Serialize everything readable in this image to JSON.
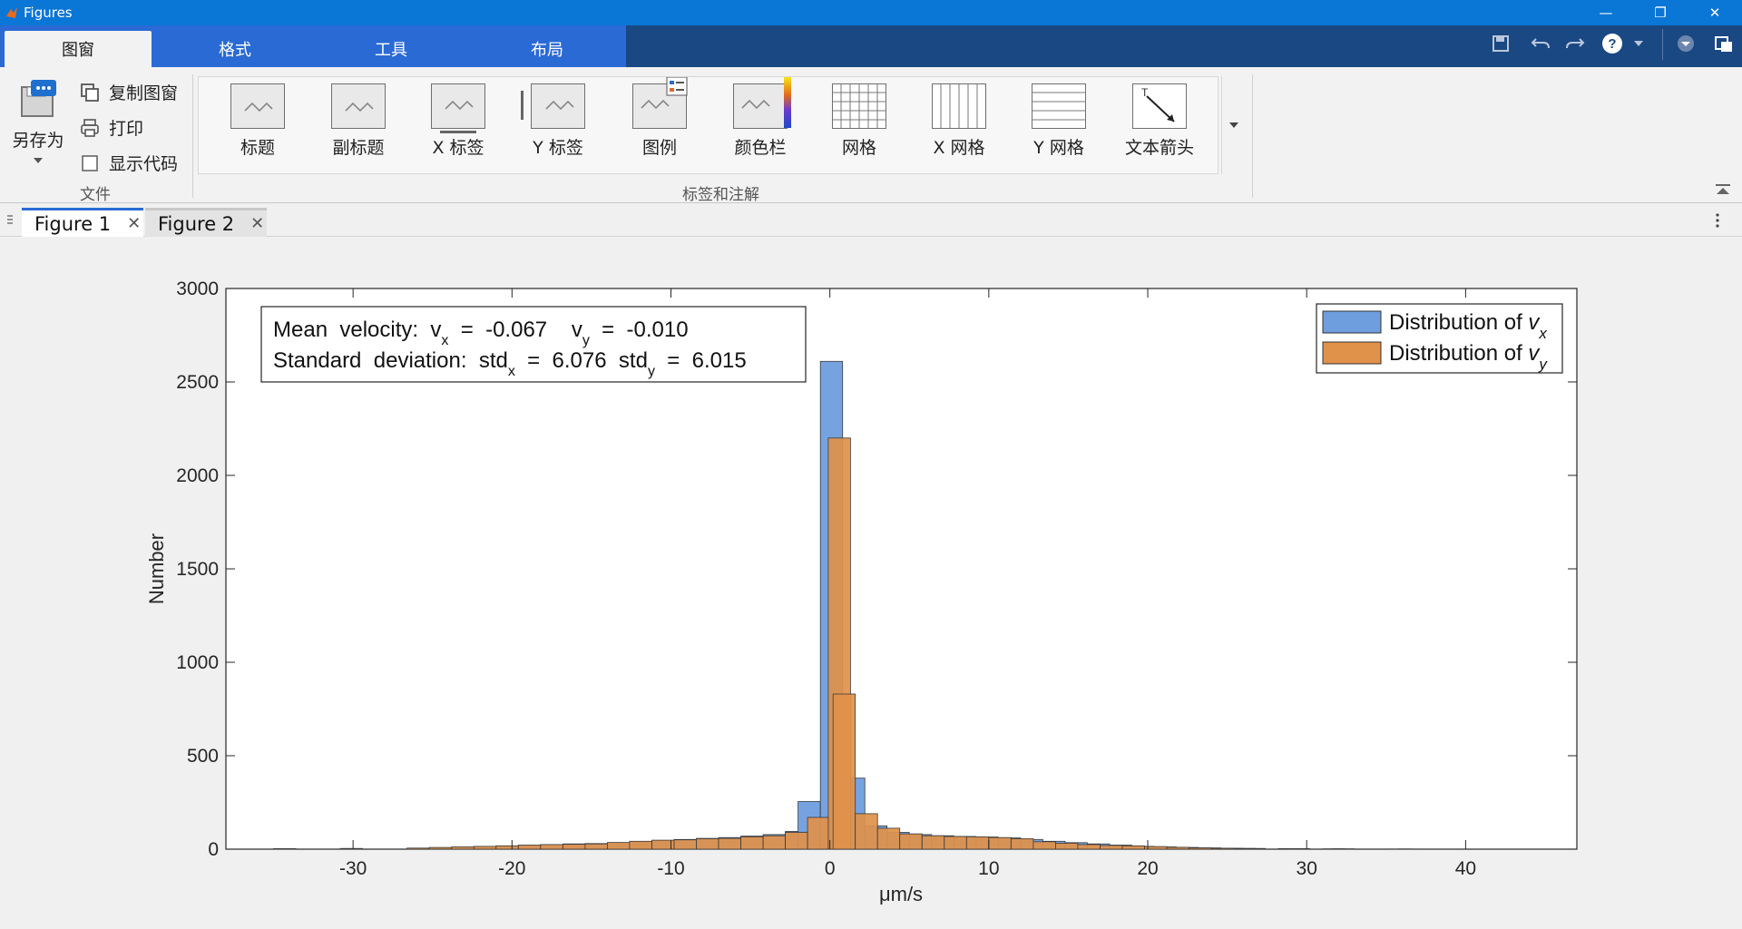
{
  "window": {
    "title": "Figures"
  },
  "ribbon_tabs": [
    "图窗",
    "格式",
    "工具",
    "布局"
  ],
  "file_group": {
    "save_as": "另存为",
    "copy_figure": "复制图窗",
    "print": "打印",
    "show_code": "显示代码",
    "label": "文件"
  },
  "annot_group": {
    "label": "标签和注解",
    "buttons": [
      "标题",
      "副标题",
      "X 标签",
      "Y 标签",
      "图例",
      "颜色栏",
      "网格",
      "X 网格",
      "Y 网格",
      "文本箭头"
    ]
  },
  "figure_tabs": [
    "Figure 1",
    "Figure 2"
  ],
  "chart_data": {
    "type": "bar",
    "xlabel": "μm/s",
    "ylabel": "Number",
    "xlim": [
      -38,
      47
    ],
    "ylim": [
      0,
      3000
    ],
    "xticks": [
      -30,
      -20,
      -10,
      0,
      10,
      20,
      30,
      40
    ],
    "yticks": [
      0,
      500,
      1000,
      1500,
      2000,
      2500,
      3000
    ],
    "bin_width": 1.4,
    "annotation": {
      "line1_prefix": "Mean  velocity:  v",
      "line1_sub1": "x",
      "line1_mid": "  =  -0.067    v",
      "line1_sub2": "y",
      "line1_suffix": "  =  -0.010",
      "line2_prefix": "Standard  deviation:  std",
      "line2_sub1": "x",
      "line2_mid": "  =  6.076  std",
      "line2_sub2": "y",
      "line2_suffix": "  =  6.015"
    },
    "legend": {
      "position": "top-right"
    },
    "series": [
      {
        "name": "Distribution of v_x",
        "legend_text": "Distribution of ",
        "legend_var": "v",
        "legend_sub": "x",
        "color": "#6f9ede",
        "bins": [
          [
            -35.0,
            2
          ],
          [
            -30.8,
            4
          ],
          [
            -26.6,
            5
          ],
          [
            -25.2,
            8
          ],
          [
            -23.8,
            10
          ],
          [
            -22.4,
            14
          ],
          [
            -21.0,
            16
          ],
          [
            -19.6,
            20
          ],
          [
            -18.2,
            24
          ],
          [
            -16.8,
            28
          ],
          [
            -15.4,
            30
          ],
          [
            -14.0,
            34
          ],
          [
            -12.6,
            40
          ],
          [
            -11.2,
            46
          ],
          [
            -9.8,
            52
          ],
          [
            -8.4,
            58
          ],
          [
            -7.0,
            62
          ],
          [
            -5.6,
            70
          ],
          [
            -4.2,
            78
          ],
          [
            -2.8,
            95
          ],
          [
            -2.0,
            255
          ],
          [
            -0.6,
            2610
          ],
          [
            0.8,
            380
          ],
          [
            2.2,
            125
          ],
          [
            3.6,
            90
          ],
          [
            5.0,
            78
          ],
          [
            6.4,
            72
          ],
          [
            7.8,
            68
          ],
          [
            9.2,
            65
          ],
          [
            10.6,
            60
          ],
          [
            12.0,
            52
          ],
          [
            13.4,
            42
          ],
          [
            14.8,
            35
          ],
          [
            16.2,
            28
          ],
          [
            17.6,
            22
          ],
          [
            19.0,
            15
          ],
          [
            20.4,
            12
          ],
          [
            21.8,
            9
          ],
          [
            23.2,
            7
          ],
          [
            24.6,
            5
          ],
          [
            26.0,
            4
          ],
          [
            28.8,
            3
          ],
          [
            31.6,
            2
          ],
          [
            35.8,
            1
          ]
        ]
      },
      {
        "name": "Distribution of v_y",
        "legend_text": "Distribution of ",
        "legend_var": "v",
        "legend_sub": "y",
        "color": "#e0914a",
        "bins": [
          [
            -35.0,
            3
          ],
          [
            -30.8,
            3
          ],
          [
            -26.6,
            6
          ],
          [
            -25.2,
            9
          ],
          [
            -23.8,
            12
          ],
          [
            -22.4,
            15
          ],
          [
            -21.0,
            18
          ],
          [
            -19.6,
            22
          ],
          [
            -18.2,
            25
          ],
          [
            -16.8,
            26
          ],
          [
            -15.4,
            28
          ],
          [
            -14.0,
            36
          ],
          [
            -12.6,
            42
          ],
          [
            -11.2,
            48
          ],
          [
            -9.8,
            50
          ],
          [
            -8.4,
            56
          ],
          [
            -7.0,
            58
          ],
          [
            -5.6,
            66
          ],
          [
            -4.2,
            72
          ],
          [
            -2.8,
            90
          ],
          [
            -1.4,
            170
          ],
          [
            -0.1,
            2200
          ],
          [
            0.2,
            830
          ],
          [
            1.6,
            190
          ],
          [
            3.0,
            112
          ],
          [
            4.4,
            82
          ],
          [
            5.8,
            72
          ],
          [
            7.2,
            68
          ],
          [
            8.6,
            66
          ],
          [
            10.0,
            62
          ],
          [
            11.4,
            56
          ],
          [
            12.8,
            40
          ],
          [
            14.2,
            32
          ],
          [
            15.6,
            25
          ],
          [
            17.0,
            20
          ],
          [
            18.4,
            18
          ],
          [
            19.8,
            14
          ],
          [
            21.2,
            10
          ],
          [
            22.6,
            7
          ],
          [
            24.0,
            5
          ],
          [
            25.4,
            4
          ],
          [
            28.2,
            3
          ],
          [
            31.0,
            2
          ],
          [
            35.2,
            1
          ]
        ]
      }
    ]
  }
}
